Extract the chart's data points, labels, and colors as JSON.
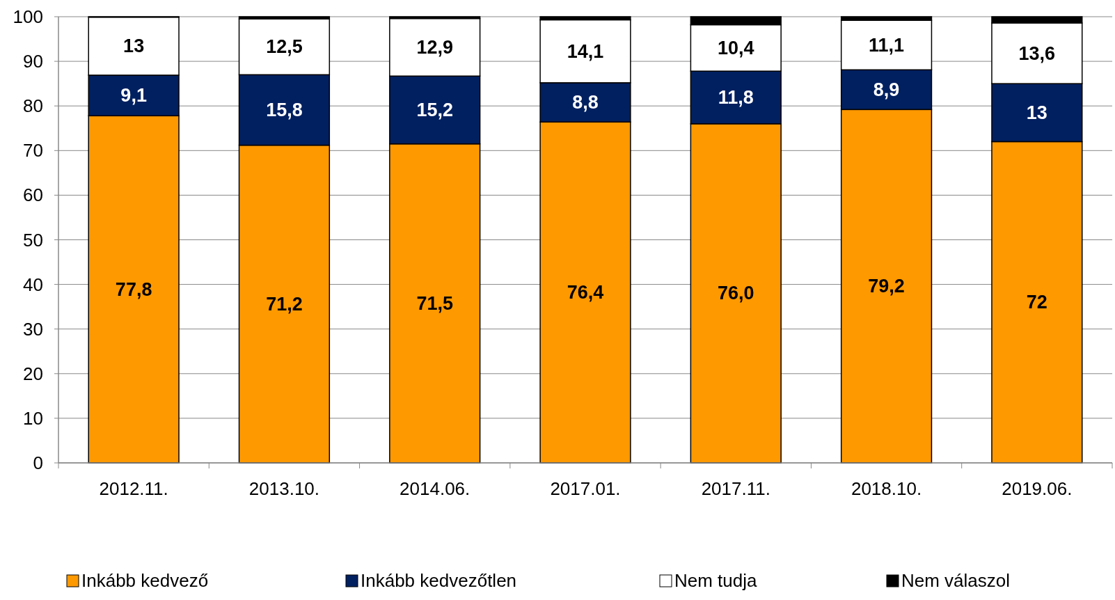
{
  "chart_data": {
    "type": "bar",
    "stacked": true,
    "categories": [
      "2012.11.",
      "2013.10.",
      "2014.06.",
      "2017.01.",
      "2017.11.",
      "2018.10.",
      "2019.06."
    ],
    "series": [
      {
        "name": "Inkább kedvező",
        "color": "#ff9900",
        "values": [
          77.8,
          71.2,
          71.5,
          76.4,
          76.0,
          79.2,
          72
        ],
        "value_labels": [
          "77,8",
          "71,2",
          "71,5",
          "76,4",
          "76,0",
          "79,2",
          "72"
        ]
      },
      {
        "name": "Inkább kedvezőtlen",
        "color": "#002060",
        "values": [
          9.1,
          15.8,
          15.2,
          8.8,
          11.8,
          8.9,
          13
        ],
        "value_labels": [
          "9,1",
          "15,8",
          "15,2",
          "8,8",
          "11,8",
          "8,9",
          "13"
        ]
      },
      {
        "name": "Nem tudja",
        "color": "#ffffff",
        "values": [
          13,
          12.5,
          12.9,
          14.1,
          10.4,
          11.1,
          13.6
        ],
        "value_labels": [
          "13",
          "12,5",
          "12,9",
          "14,1",
          "10,4",
          "11,1",
          "13,6"
        ]
      },
      {
        "name": "Nem válaszol",
        "color": "#000000",
        "values": [
          0.1,
          0.5,
          0.4,
          0.7,
          1.8,
          0.8,
          1.4
        ],
        "value_labels": [
          null,
          null,
          null,
          null,
          null,
          null,
          null
        ]
      }
    ],
    "ylim": [
      0,
      100
    ],
    "yticks": [
      0,
      10,
      20,
      30,
      40,
      50,
      60,
      70,
      80,
      90,
      100
    ],
    "grid": "y",
    "legend": "bottom"
  }
}
